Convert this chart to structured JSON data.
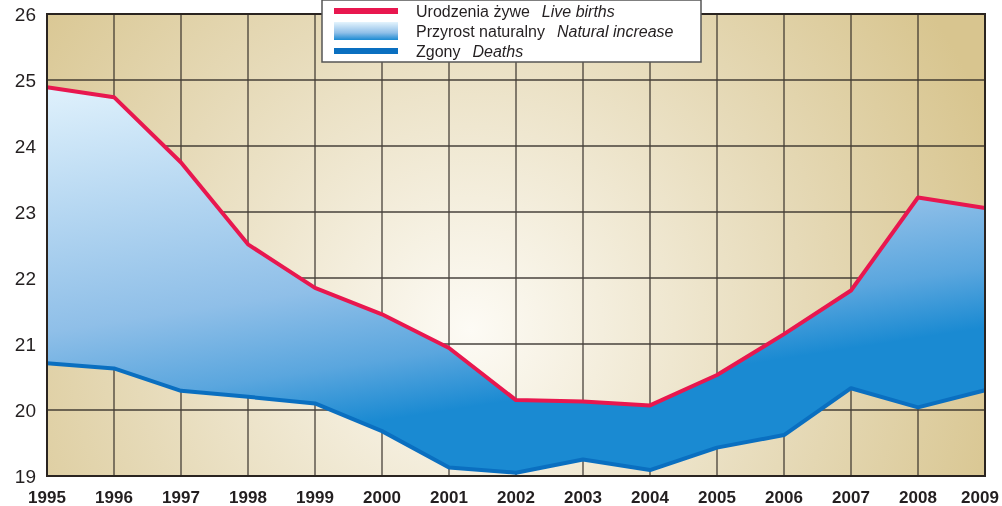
{
  "chart_data": {
    "type": "line",
    "x": [
      1995,
      1996,
      1997,
      1998,
      1999,
      2000,
      2001,
      2002,
      2003,
      2004,
      2005,
      2006,
      2007,
      2008,
      2009
    ],
    "xlim": [
      1995,
      2009
    ],
    "xticks": [
      1995,
      1996,
      1997,
      1998,
      1999,
      2000,
      2001,
      2002,
      2003,
      2004,
      2005,
      2006,
      2007,
      2008,
      2009
    ],
    "ylim": [
      19,
      26
    ],
    "yticks": [
      19,
      20,
      21,
      22,
      23,
      24,
      25,
      26
    ],
    "grid": true,
    "legend": "top",
    "annotations": [
      "Przyrost naturalny  Natural increase"
    ],
    "series": [
      {
        "name": "Urodzenia żywe  Live births",
        "color": "#e8174f",
        "values": [
          24.89,
          24.74,
          23.75,
          22.51,
          21.85,
          21.45,
          20.94,
          20.15,
          20.13,
          20.07,
          20.53,
          21.15,
          21.81,
          23.22,
          23.06
        ],
        "lower": [
          20.71,
          20.63,
          20.29,
          20.2,
          20.1,
          19.68,
          19.13,
          19.05,
          19.25,
          19.09,
          19.43,
          19.62,
          20.33,
          20.04,
          20.3
        ],
        "upper": [
          24.89,
          24.74,
          23.75,
          22.51,
          21.85,
          21.45,
          20.94,
          20.15,
          20.13,
          20.07,
          20.53,
          21.15,
          21.81,
          23.22,
          23.06
        ]
      },
      {
        "name": "Zgony  Deaths",
        "color": "#0a6fc0",
        "values": [
          20.71,
          20.63,
          20.29,
          20.2,
          20.1,
          19.68,
          19.13,
          19.05,
          19.25,
          19.09,
          19.43,
          19.62,
          20.33,
          20.04,
          20.3
        ]
      }
    ]
  }
}
